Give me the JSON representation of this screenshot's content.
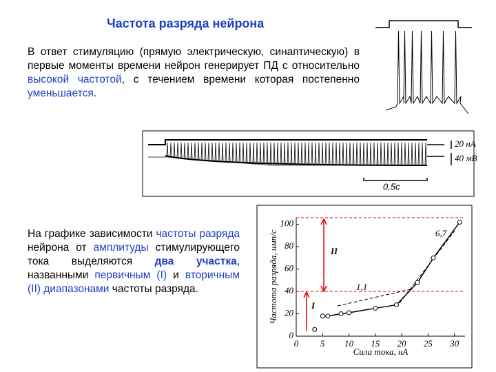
{
  "header": {
    "title": "Частота разряда нейрона"
  },
  "paragraphs": [
    [
      "В ответ стимуляцию (прямую электрическую, синаптическую) в первые моменты времени нейрон генерирует ПД с относительно ",
      "высокой частотой",
      ", с течением времени которая постепенно ",
      "уменьшается",
      "."
    ],
    [
      "На графике зависимости ",
      "частоты разряда",
      " нейрона от ",
      "амплитуды",
      " стимулирующего тока выделяются ",
      "два участка",
      ", названными ",
      "первичным (I)",
      " и ",
      "вторичным (II) диапазонами",
      " частоты разряда."
    ]
  ],
  "trace_labels": {
    "current": "20 нА",
    "voltage": "40 мВ",
    "time": "0,5с"
  },
  "chart_data": {
    "type": "line",
    "x_label": "Сила тока, нА",
    "y_label": "Частота разряда, имп/с",
    "series": [
      {
        "color": "#000000",
        "x": [
          3.5,
          5,
          6,
          8.5,
          10,
          15,
          19,
          23,
          26,
          31
        ],
        "values": [
          6,
          18,
          18,
          20,
          21,
          25,
          28,
          48,
          70,
          102
        ]
      }
    ],
    "xlim": [
      0,
      32
    ],
    "ylim": [
      0,
      106
    ],
    "xticks": [
      0,
      5,
      10,
      15,
      20,
      25,
      30
    ],
    "yticks": [
      0,
      20,
      40,
      60,
      80,
      100
    ],
    "annotations": [
      "6,7",
      "1,1",
      "I",
      "II"
    ]
  }
}
